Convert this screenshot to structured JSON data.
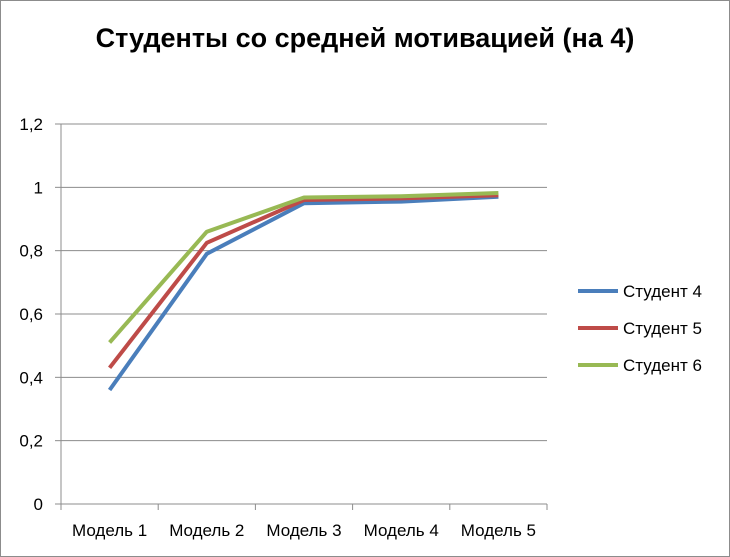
{
  "chart_data": {
    "type": "line",
    "title": "Студенты со средней мотивацией (на 4)",
    "xlabel": "",
    "ylabel": "",
    "ylim": [
      0,
      1.2
    ],
    "yticks": [
      "0",
      "0,2",
      "0,4",
      "0,6",
      "0,8",
      "1",
      "1,2"
    ],
    "categories": [
      "Модель 1",
      "Модель 2",
      "Модель 3",
      "Модель 4",
      "Модель 5"
    ],
    "grid": true,
    "legend_position": "right",
    "series": [
      {
        "name": "Студент 4",
        "color": "#4a7ebb",
        "values": [
          0.36,
          0.79,
          0.95,
          0.955,
          0.97
        ]
      },
      {
        "name": "Студент 5",
        "color": "#be4b48",
        "values": [
          0.43,
          0.825,
          0.96,
          0.965,
          0.975
        ]
      },
      {
        "name": "Студент 6",
        "color": "#98b954",
        "values": [
          0.51,
          0.86,
          0.968,
          0.972,
          0.982
        ]
      }
    ]
  }
}
